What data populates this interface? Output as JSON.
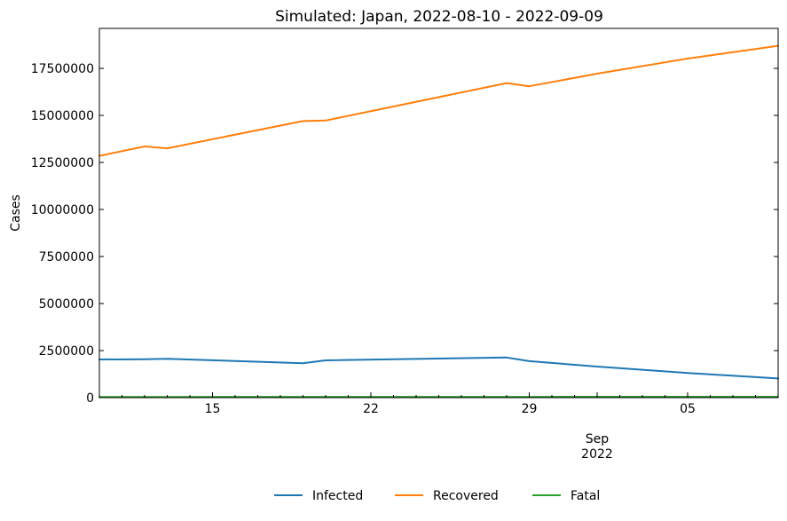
{
  "chart_data": {
    "type": "line",
    "title": "Simulated: Japan,  2022-08-10 -  2022-09-09",
    "xlabel": "",
    "ylabel": "Cases",
    "xlim": [
      "2022-08-10",
      "2022-09-09"
    ],
    "ylim": [
      0,
      19625000
    ],
    "grid": false,
    "legend_position": "bottom-center",
    "y_ticks": [
      0,
      2500000,
      5000000,
      7500000,
      10000000,
      12500000,
      15000000,
      17500000
    ],
    "y_tick_labels": [
      "0",
      "2500000",
      "5000000",
      "7500000",
      "10000000",
      "12500000",
      "15000000",
      "17500000"
    ],
    "x_ticks": [
      {
        "date": "2022-08-15",
        "label": "15"
      },
      {
        "date": "2022-08-22",
        "label": "22"
      },
      {
        "date": "2022-08-29",
        "label": "29"
      },
      {
        "date": "2022-09-01",
        "label": "Sep\n2022"
      },
      {
        "date": "2022-09-05",
        "label": "05"
      }
    ],
    "x": [
      "2022-08-10",
      "2022-08-12",
      "2022-08-13",
      "2022-08-19",
      "2022-08-20",
      "2022-08-28",
      "2022-08-29",
      "2022-09-01",
      "2022-09-05",
      "2022-09-09"
    ],
    "series": [
      {
        "name": "Infected",
        "color": "#1f77b4",
        "values": [
          2030000,
          2040000,
          2060000,
          1830000,
          1980000,
          2130000,
          1940000,
          1650000,
          1310000,
          1020000
        ]
      },
      {
        "name": "Recovered",
        "color": "#ff7f0e",
        "values": [
          12850000,
          13350000,
          13250000,
          14700000,
          14730000,
          16720000,
          16550000,
          17220000,
          18020000,
          18700000
        ]
      },
      {
        "name": "Fatal",
        "color": "#2ca02c",
        "values": [
          40000,
          40000,
          40000,
          42000,
          42000,
          44000,
          44000,
          45000,
          46000,
          47000
        ]
      }
    ]
  }
}
